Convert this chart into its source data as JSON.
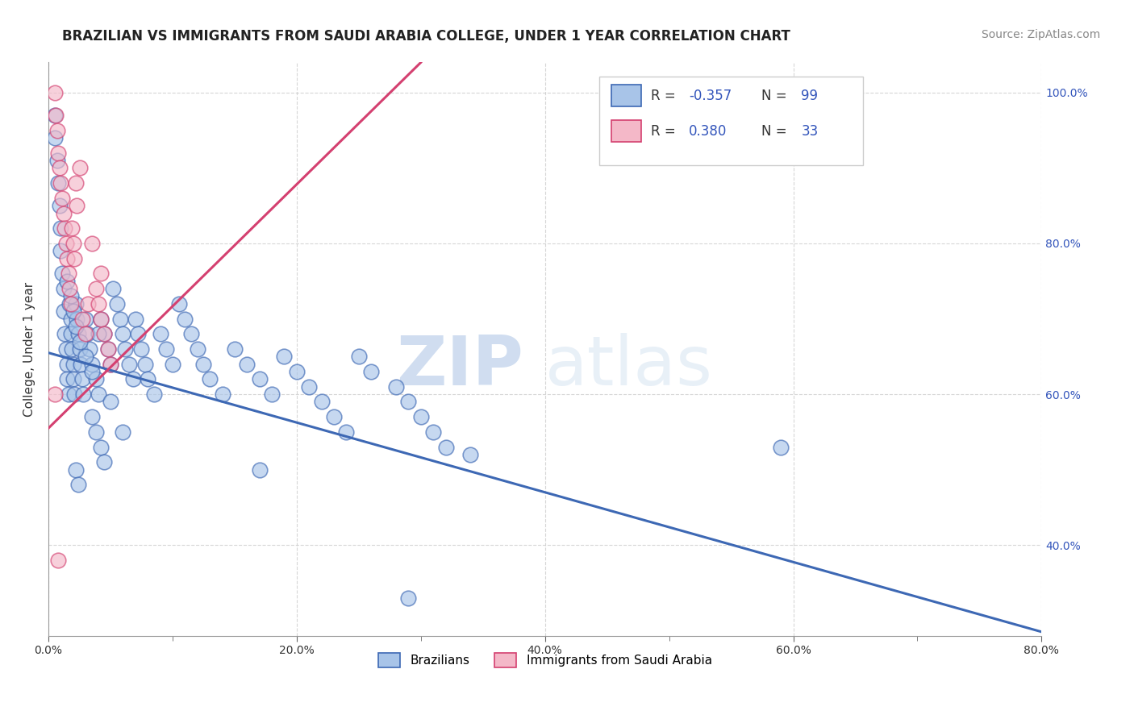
{
  "title": "BRAZILIAN VS IMMIGRANTS FROM SAUDI ARABIA COLLEGE, UNDER 1 YEAR CORRELATION CHART",
  "source_text": "Source: ZipAtlas.com",
  "ylabel": "College, Under 1 year",
  "xlabel": "",
  "watermark_zip": "ZIP",
  "watermark_atlas": "atlas",
  "xlim": [
    0.0,
    0.8
  ],
  "ylim": [
    0.28,
    1.04
  ],
  "xtick_labels": [
    "0.0%",
    "",
    "20.0%",
    "",
    "40.0%",
    "",
    "60.0%",
    "",
    "80.0%"
  ],
  "xtick_values": [
    0.0,
    0.1,
    0.2,
    0.3,
    0.4,
    0.5,
    0.6,
    0.7,
    0.8
  ],
  "xtick_major_labels": [
    "0.0%",
    "20.0%",
    "40.0%",
    "60.0%",
    "80.0%"
  ],
  "xtick_major_values": [
    0.0,
    0.2,
    0.4,
    0.6,
    0.8
  ],
  "ytick_labels": [
    "40.0%",
    "60.0%",
    "80.0%",
    "100.0%"
  ],
  "ytick_values": [
    0.4,
    0.6,
    0.8,
    1.0
  ],
  "brazilian_color": "#a8c4e8",
  "saudi_color": "#f4b8c8",
  "trendline_blue": "#3d68b4",
  "trendline_pink": "#d44070",
  "legend_R_blue": "-0.357",
  "legend_N_blue": "99",
  "legend_R_pink": "0.380",
  "legend_N_pink": "33",
  "legend_color_blue_face": "#a8c4e8",
  "legend_color_blue_edge": "#3d68b4",
  "legend_color_pink_face": "#f4b8c8",
  "legend_color_pink_edge": "#d44070",
  "R_N_color": "#3355bb",
  "title_fontsize": 12,
  "source_fontsize": 10,
  "axis_label_fontsize": 11,
  "tick_fontsize": 10,
  "background_color": "#ffffff",
  "grid_color": "#cccccc",
  "blue_x": [
    0.005,
    0.005,
    0.007,
    0.008,
    0.009,
    0.01,
    0.01,
    0.011,
    0.012,
    0.012,
    0.013,
    0.014,
    0.015,
    0.015,
    0.016,
    0.017,
    0.018,
    0.018,
    0.019,
    0.02,
    0.02,
    0.021,
    0.022,
    0.023,
    0.024,
    0.025,
    0.026,
    0.027,
    0.028,
    0.03,
    0.031,
    0.033,
    0.035,
    0.038,
    0.04,
    0.042,
    0.045,
    0.048,
    0.05,
    0.052,
    0.055,
    0.058,
    0.06,
    0.062,
    0.065,
    0.068,
    0.07,
    0.072,
    0.075,
    0.078,
    0.08,
    0.085,
    0.09,
    0.095,
    0.1,
    0.105,
    0.11,
    0.115,
    0.12,
    0.125,
    0.13,
    0.14,
    0.15,
    0.16,
    0.17,
    0.18,
    0.19,
    0.2,
    0.21,
    0.22,
    0.23,
    0.24,
    0.25,
    0.26,
    0.28,
    0.29,
    0.3,
    0.31,
    0.32,
    0.34,
    0.015,
    0.018,
    0.02,
    0.022,
    0.025,
    0.03,
    0.035,
    0.04,
    0.05,
    0.06,
    0.035,
    0.038,
    0.042,
    0.045,
    0.022,
    0.024,
    0.17,
    0.59,
    0.29
  ],
  "blue_y": [
    0.97,
    0.94,
    0.91,
    0.88,
    0.85,
    0.82,
    0.79,
    0.76,
    0.74,
    0.71,
    0.68,
    0.66,
    0.64,
    0.62,
    0.6,
    0.72,
    0.7,
    0.68,
    0.66,
    0.64,
    0.62,
    0.6,
    0.72,
    0.7,
    0.68,
    0.66,
    0.64,
    0.62,
    0.6,
    0.7,
    0.68,
    0.66,
    0.64,
    0.62,
    0.6,
    0.7,
    0.68,
    0.66,
    0.64,
    0.74,
    0.72,
    0.7,
    0.68,
    0.66,
    0.64,
    0.62,
    0.7,
    0.68,
    0.66,
    0.64,
    0.62,
    0.6,
    0.68,
    0.66,
    0.64,
    0.72,
    0.7,
    0.68,
    0.66,
    0.64,
    0.62,
    0.6,
    0.66,
    0.64,
    0.62,
    0.6,
    0.65,
    0.63,
    0.61,
    0.59,
    0.57,
    0.55,
    0.65,
    0.63,
    0.61,
    0.59,
    0.57,
    0.55,
    0.53,
    0.52,
    0.75,
    0.73,
    0.71,
    0.69,
    0.67,
    0.65,
    0.63,
    0.68,
    0.59,
    0.55,
    0.57,
    0.55,
    0.53,
    0.51,
    0.5,
    0.48,
    0.5,
    0.53,
    0.33
  ],
  "pink_x": [
    0.005,
    0.006,
    0.007,
    0.008,
    0.009,
    0.01,
    0.011,
    0.012,
    0.013,
    0.014,
    0.015,
    0.016,
    0.017,
    0.018,
    0.019,
    0.02,
    0.021,
    0.022,
    0.023,
    0.025,
    0.027,
    0.03,
    0.032,
    0.035,
    0.038,
    0.04,
    0.042,
    0.045,
    0.048,
    0.05,
    0.005,
    0.008,
    0.042
  ],
  "pink_y": [
    1.0,
    0.97,
    0.95,
    0.92,
    0.9,
    0.88,
    0.86,
    0.84,
    0.82,
    0.8,
    0.78,
    0.76,
    0.74,
    0.72,
    0.82,
    0.8,
    0.78,
    0.88,
    0.85,
    0.9,
    0.7,
    0.68,
    0.72,
    0.8,
    0.74,
    0.72,
    0.7,
    0.68,
    0.66,
    0.64,
    0.6,
    0.38,
    0.76
  ],
  "blue_trend_x0": 0.0,
  "blue_trend_y0": 0.655,
  "blue_trend_x1": 0.8,
  "blue_trend_y1": 0.285,
  "pink_trend_x0": 0.0,
  "pink_trend_y0": 0.555,
  "pink_trend_x1": 0.3,
  "pink_trend_y1": 1.04
}
